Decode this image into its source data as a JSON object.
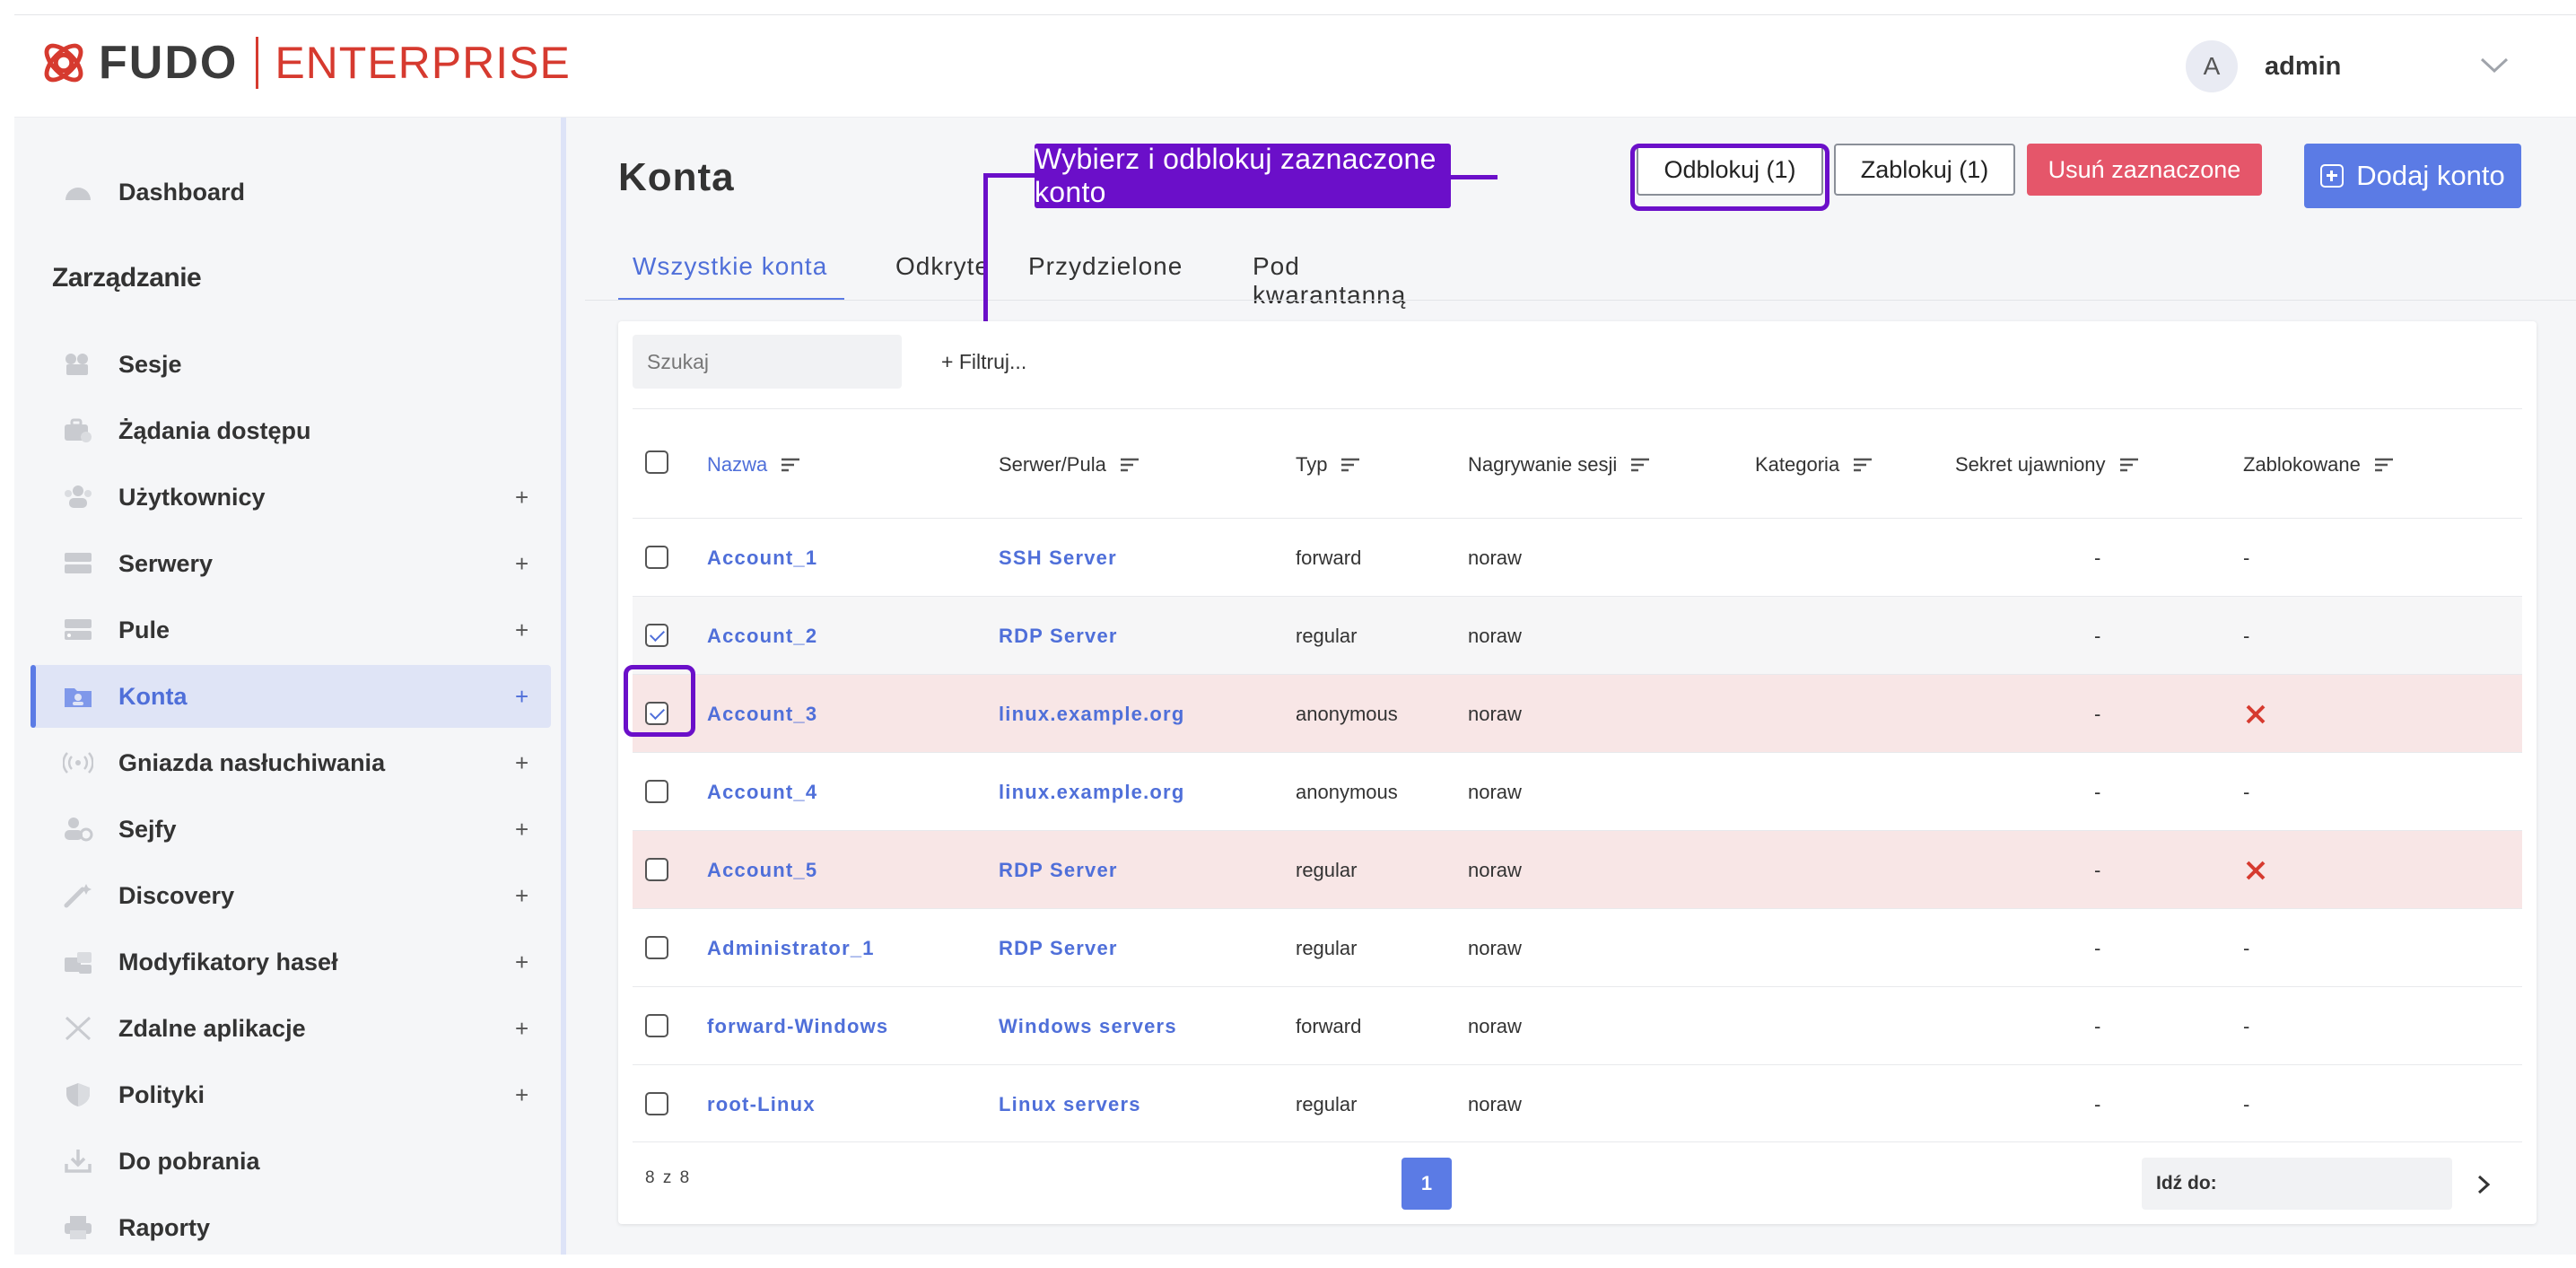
{
  "brand": {
    "name": "FUDO",
    "edition": "ENTERPRISE",
    "accent": "#d63a2f"
  },
  "user": {
    "initial": "A",
    "name": "admin"
  },
  "sidebar": {
    "section_title": "Zarządzanie",
    "items": [
      {
        "label": "Dashboard",
        "icon": "dashboard-icon",
        "expandable": false,
        "plus": ""
      },
      {
        "label": "Sesje",
        "icon": "sessions-icon",
        "expandable": false,
        "plus": ""
      },
      {
        "label": "Żądania dostępu",
        "icon": "access-requests-icon",
        "expandable": false,
        "plus": ""
      },
      {
        "label": "Użytkownicy",
        "icon": "users-icon",
        "expandable": true,
        "plus": "+"
      },
      {
        "label": "Serwery",
        "icon": "servers-icon",
        "expandable": true,
        "plus": "+"
      },
      {
        "label": "Pule",
        "icon": "pools-icon",
        "expandable": true,
        "plus": "+"
      },
      {
        "label": "Konta",
        "icon": "accounts-icon",
        "expandable": true,
        "plus": "+",
        "active": true
      },
      {
        "label": "Gniazda nasłuchiwania",
        "icon": "listeners-icon",
        "expandable": true,
        "plus": "+"
      },
      {
        "label": "Sejfy",
        "icon": "safes-icon",
        "expandable": true,
        "plus": "+"
      },
      {
        "label": "Discovery",
        "icon": "discovery-icon",
        "expandable": true,
        "plus": "+"
      },
      {
        "label": "Modyfikatory haseł",
        "icon": "password-changers-icon",
        "expandable": true,
        "plus": "+"
      },
      {
        "label": "Zdalne aplikacje",
        "icon": "remote-apps-icon",
        "expandable": true,
        "plus": "+"
      },
      {
        "label": "Polityki",
        "icon": "policies-icon",
        "expandable": true,
        "plus": "+"
      },
      {
        "label": "Do pobrania",
        "icon": "downloads-icon",
        "expandable": false,
        "plus": ""
      },
      {
        "label": "Raporty",
        "icon": "reports-icon",
        "expandable": false,
        "plus": ""
      }
    ]
  },
  "main": {
    "title": "Konta",
    "tabs": [
      {
        "label": "Wszystkie konta",
        "active": true
      },
      {
        "label": "Odkryte"
      },
      {
        "label": "Przydzielone"
      },
      {
        "label": "Pod kwarantanną"
      }
    ],
    "toolbar": {
      "unlock_label": "Odblokuj (1)",
      "lock_label": "Zablokuj (1)",
      "delete_label": "Usuń zaznaczone",
      "add_label": "Dodaj konto"
    },
    "annotation": "Wybierz i odblokuj zaznaczone konto",
    "search": {
      "placeholder": "Szukaj",
      "value": ""
    },
    "filter_label": "+ Filtruj...",
    "columns": [
      "Nazwa",
      "Serwer/Pula",
      "Typ",
      "Nagrywanie sesji",
      "Kategoria",
      "Sekret ujawniony",
      "Zablokowane"
    ],
    "rows": [
      {
        "name": "Account_1",
        "server": "SSH Server",
        "type": "forward",
        "recording": "noraw",
        "category": "",
        "secret": "-",
        "locked": "-",
        "checked": false,
        "is_locked": false
      },
      {
        "name": "Account_2",
        "server": "RDP Server",
        "type": "regular",
        "recording": "noraw",
        "category": "",
        "secret": "-",
        "locked": "-",
        "checked": true,
        "is_locked": false
      },
      {
        "name": "Account_3",
        "server": "linux.example.org",
        "type": "anonymous",
        "recording": "noraw",
        "category": "",
        "secret": "-",
        "locked": "",
        "checked": true,
        "is_locked": true
      },
      {
        "name": "Account_4",
        "server": "linux.example.org",
        "type": "anonymous",
        "recording": "noraw",
        "category": "",
        "secret": "-",
        "locked": "-",
        "checked": false,
        "is_locked": false
      },
      {
        "name": "Account_5",
        "server": "RDP Server",
        "type": "regular",
        "recording": "noraw",
        "category": "",
        "secret": "-",
        "locked": "",
        "checked": false,
        "is_locked": true
      },
      {
        "name": "Administrator_1",
        "server": "RDP Server",
        "type": "regular",
        "recording": "noraw",
        "category": "",
        "secret": "-",
        "locked": "-",
        "checked": false,
        "is_locked": false
      },
      {
        "name": "forward-Windows",
        "server": "Windows servers",
        "type": "forward",
        "recording": "noraw",
        "category": "",
        "secret": "-",
        "locked": "-",
        "checked": false,
        "is_locked": false
      },
      {
        "name": "root-Linux",
        "server": "Linux servers",
        "type": "regular",
        "recording": "noraw",
        "category": "",
        "secret": "-",
        "locked": "-",
        "checked": false,
        "is_locked": false
      }
    ],
    "pagination": {
      "count": "8 z 8",
      "current_page": "1",
      "goto_label": "Idź do:"
    }
  },
  "colors": {
    "primary": "#5b7be5",
    "danger": "#e5566a",
    "annotation": "#6b0fc9",
    "locked_row": "#f8e6e6",
    "lock_mark": "#d63a2f"
  }
}
